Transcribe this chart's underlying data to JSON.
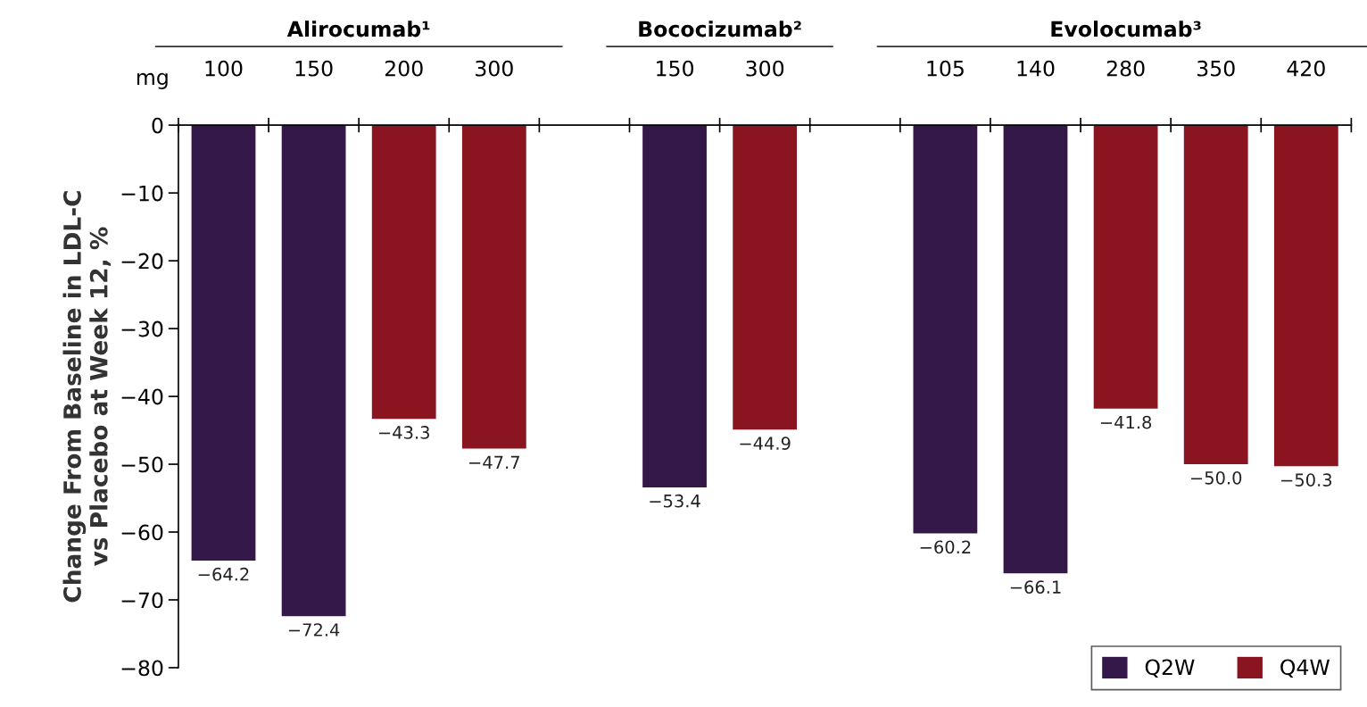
{
  "chart_data": {
    "type": "bar",
    "categories": [
      "100",
      "150",
      "200",
      "300",
      null,
      "150",
      "300",
      null,
      "105",
      "140",
      "280",
      "350",
      "420"
    ],
    "series": [
      {
        "name": "Q2W",
        "color": "#35184a",
        "values": [
          -64.2,
          -72.4,
          null,
          null,
          null,
          -53.4,
          null,
          null,
          -60.2,
          -66.1,
          null,
          null,
          null
        ],
        "value_labels": [
          "−64.2",
          "−72.4",
          null,
          null,
          null,
          "−53.4",
          null,
          null,
          "−60.2",
          "−66.1",
          null,
          null,
          null
        ]
      },
      {
        "name": "Q4W",
        "color": "#8a1520",
        "values": [
          null,
          null,
          -43.3,
          -47.7,
          null,
          null,
          -44.9,
          null,
          null,
          null,
          -41.8,
          -50.0,
          -50.3
        ],
        "value_labels": [
          null,
          null,
          "−43.3",
          "−47.7",
          null,
          null,
          "−44.9",
          null,
          null,
          null,
          "−41.8",
          "−50.0",
          "−50.3"
        ]
      }
    ],
    "ylabel": "Change From Baseline in LDL-C\nvs Placebo at Week 12, %",
    "annotations": [
      "mg",
      "Alirocumab¹",
      "Bococizumab²",
      "Evolocumab³"
    ],
    "ylim": [
      -80,
      0
    ],
    "yticks": [
      0,
      {
        "value": -10,
        "label": "−10"
      },
      {
        "value": -20,
        "label": "−20"
      },
      {
        "value": -30,
        "label": "−30"
      },
      {
        "value": -40,
        "label": "−40"
      },
      {
        "value": -50,
        "label": "−50"
      },
      {
        "value": -60,
        "label": "−60"
      },
      {
        "value": -70,
        "label": "−70"
      },
      {
        "value": -80,
        "label": "−80"
      }
    ],
    "grid": false,
    "legend": "bottom right"
  }
}
